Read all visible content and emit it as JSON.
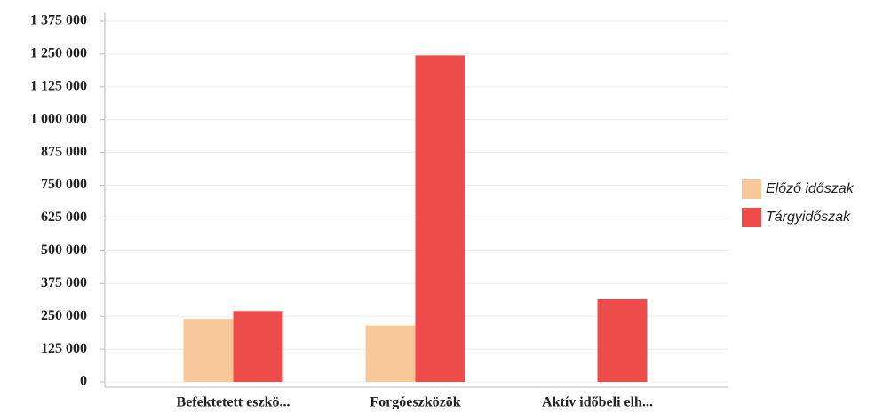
{
  "chart_data": {
    "type": "bar",
    "categories": [
      "Befektetett eszkö...",
      "Forgóeszközök",
      "Aktív időbeli elh..."
    ],
    "series": [
      {
        "name": "Előző időszak",
        "color": "#f8c89a",
        "values": [
          240000,
          215000,
          0
        ]
      },
      {
        "name": "Tárgyidőszak",
        "color": "#ee4b4b",
        "values": [
          270000,
          1245000,
          315000
        ]
      }
    ],
    "ylim": [
      0,
      1375000
    ],
    "yticks": [
      0,
      {
        "value": 125000,
        "label": "125 000"
      },
      {
        "value": 250000,
        "label": "250 000"
      },
      {
        "value": 375000,
        "label": "375 000"
      },
      {
        "value": 500000,
        "label": "500 000"
      },
      {
        "value": 625000,
        "label": "625 000"
      },
      {
        "value": 750000,
        "label": "750 000"
      },
      {
        "value": 875000,
        "label": "875 000"
      },
      {
        "value": 1000000,
        "label": "1 000 000"
      },
      {
        "value": 1125000,
        "label": "1 125 000"
      },
      {
        "value": 1250000,
        "label": "1 250 000"
      },
      {
        "value": 1375000,
        "label": "1 375 000"
      }
    ],
    "grid": true,
    "legend": "right"
  }
}
